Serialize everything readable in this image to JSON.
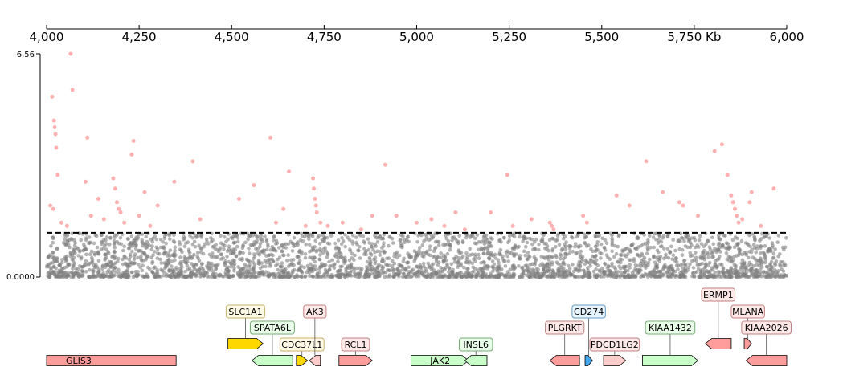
{
  "chart_data": {
    "type": "scatter",
    "title": "",
    "xlabel": "",
    "ylabel": "",
    "x_unit_label": "Kb",
    "xlim": [
      4000,
      6000
    ],
    "x_ticks": [
      4000,
      4250,
      4500,
      4750,
      5000,
      5250,
      5500,
      5750,
      6000
    ],
    "x_tick_labels": [
      "4,000",
      "4,250",
      "4,500",
      "4,750",
      "5,000",
      "5,250",
      "5,500",
      "5,750 Kb",
      "6,000"
    ],
    "ylim": [
      0,
      6.56
    ],
    "y_tick_labels": [
      "0.0000",
      "6.56"
    ],
    "threshold": 1.3,
    "colors": {
      "below_threshold": "#808080",
      "above_threshold": "#ff9d9d",
      "threshold_line": "#000000"
    },
    "series": [
      {
        "name": "",
        "description_hidden": false,
        "points_above": [
          [
            4015,
            5.3
          ],
          [
            4020,
            4.6
          ],
          [
            4022,
            4.4
          ],
          [
            4024,
            4.2
          ],
          [
            4026,
            3.8
          ],
          [
            4030,
            3.0
          ],
          [
            4010,
            2.1
          ],
          [
            4018,
            2.0
          ],
          [
            4040,
            1.6
          ],
          [
            4055,
            1.5
          ],
          [
            4065,
            6.56
          ],
          [
            4070,
            5.5
          ],
          [
            4110,
            4.1
          ],
          [
            4105,
            2.8
          ],
          [
            4120,
            1.8
          ],
          [
            4140,
            2.3
          ],
          [
            4155,
            1.7
          ],
          [
            4180,
            2.9
          ],
          [
            4185,
            2.6
          ],
          [
            4190,
            2.2
          ],
          [
            4195,
            2.0
          ],
          [
            4200,
            1.9
          ],
          [
            4210,
            1.6
          ],
          [
            4230,
            3.6
          ],
          [
            4235,
            4.0
          ],
          [
            4250,
            1.8
          ],
          [
            4265,
            2.5
          ],
          [
            4280,
            1.5
          ],
          [
            4300,
            2.1
          ],
          [
            4345,
            2.8
          ],
          [
            4395,
            3.4
          ],
          [
            4415,
            1.7
          ],
          [
            4520,
            2.3
          ],
          [
            4560,
            2.7
          ],
          [
            4605,
            4.1
          ],
          [
            4620,
            1.6
          ],
          [
            4640,
            2.0
          ],
          [
            4655,
            3.1
          ],
          [
            4700,
            1.5
          ],
          [
            4720,
            2.9
          ],
          [
            4722,
            2.6
          ],
          [
            4725,
            2.3
          ],
          [
            4728,
            2.1
          ],
          [
            4730,
            1.9
          ],
          [
            4740,
            1.6
          ],
          [
            4760,
            1.5
          ],
          [
            4800,
            1.6
          ],
          [
            4850,
            1.4
          ],
          [
            4880,
            1.8
          ],
          [
            4915,
            3.3
          ],
          [
            4945,
            1.8
          ],
          [
            5000,
            1.6
          ],
          [
            5040,
            1.7
          ],
          [
            5075,
            1.5
          ],
          [
            5105,
            1.9
          ],
          [
            5130,
            1.4
          ],
          [
            5200,
            1.9
          ],
          [
            5245,
            3.0
          ],
          [
            5260,
            1.5
          ],
          [
            5310,
            1.7
          ],
          [
            5360,
            1.6
          ],
          [
            5365,
            1.5
          ],
          [
            5370,
            1.4
          ],
          [
            5450,
            1.8
          ],
          [
            5460,
            1.6
          ],
          [
            5540,
            2.4
          ],
          [
            5575,
            2.1
          ],
          [
            5620,
            3.4
          ],
          [
            5665,
            2.5
          ],
          [
            5710,
            2.2
          ],
          [
            5720,
            2.1
          ],
          [
            5760,
            1.8
          ],
          [
            5805,
            3.7
          ],
          [
            5825,
            3.9
          ],
          [
            5840,
            3.0
          ],
          [
            5850,
            2.4
          ],
          [
            5855,
            2.2
          ],
          [
            5860,
            2.0
          ],
          [
            5865,
            1.8
          ],
          [
            5870,
            1.6
          ],
          [
            5880,
            1.7
          ],
          [
            5900,
            2.2
          ],
          [
            5905,
            2.5
          ],
          [
            5930,
            1.5
          ],
          [
            5965,
            2.6
          ]
        ]
      }
    ],
    "genes": [
      {
        "label": "GLIS3",
        "start": 4000,
        "end": 4350,
        "row": 0,
        "strand": "none",
        "fill": "#ff9d9d",
        "label_inside": true
      },
      {
        "label": "SLC1A1",
        "start": 4490,
        "end": 4585,
        "row": 1,
        "strand": "+",
        "fill": "#ffd700",
        "label_row": 3,
        "label_bg": "#fffbe6",
        "label_border": "#c9b26a"
      },
      {
        "label": "SPATA6L",
        "start": 4555,
        "end": 4665,
        "row": 0,
        "strand": "-",
        "fill": "#c9ffc9",
        "label_row": 2,
        "label_bg": "#eaffea",
        "label_border": "#74a874"
      },
      {
        "label": "CDC37L1",
        "start": 4675,
        "end": 4705,
        "row": 0,
        "strand": "+",
        "fill": "#ffd700",
        "label_row": 1,
        "label_bg": "#fffbe6",
        "label_border": "#c9b26a"
      },
      {
        "label": "AK3",
        "start": 4710,
        "end": 4740,
        "row": 0,
        "strand": "-",
        "fill": "#ffcccc",
        "label_row": 3,
        "label_bg": "#ffe8e8",
        "label_border": "#c08080"
      },
      {
        "label": "RCL1",
        "start": 4790,
        "end": 4880,
        "row": 0,
        "strand": "+",
        "fill": "#ff9d9d",
        "label_row": 1,
        "label_bg": "#ffe8e8",
        "label_border": "#c08080"
      },
      {
        "label": "JAK2",
        "start": 4985,
        "end": 5140,
        "row": 0,
        "strand": "+",
        "fill": "#c9ffc9",
        "label_inside": true
      },
      {
        "label": "INSL6",
        "start": 5130,
        "end": 5190,
        "row": 0,
        "strand": "-",
        "fill": "#c9ffc9",
        "label_row": 1,
        "label_bg": "#eaffea",
        "label_border": "#74a874"
      },
      {
        "label": "PLGRKT",
        "start": 5360,
        "end": 5440,
        "row": 0,
        "strand": "-",
        "fill": "#ff9d9d",
        "label_row": 2,
        "label_bg": "#ffe8e8",
        "label_border": "#c08080"
      },
      {
        "label": "CD274",
        "start": 5455,
        "end": 5475,
        "row": 0,
        "strand": "+",
        "fill": "#3fa9f5",
        "label_row": 3,
        "label_bg": "#e6f4ff",
        "label_border": "#6a9cc0"
      },
      {
        "label": "PDCD1LG2",
        "start": 5505,
        "end": 5565,
        "row": 0,
        "strand": "+",
        "fill": "#ffcccc",
        "label_row": 1,
        "label_bg": "#ffe8e8",
        "label_border": "#c08080"
      },
      {
        "label": "KIAA1432",
        "start": 5610,
        "end": 5760,
        "row": 0,
        "strand": "+",
        "fill": "#c9ffc9",
        "label_row": 2,
        "label_bg": "#eaffea",
        "label_border": "#74a874"
      },
      {
        "label": "ERMP1",
        "start": 5780,
        "end": 5850,
        "row": 1,
        "strand": "-",
        "fill": "#ff9d9d",
        "label_row": 4,
        "label_bg": "#ffe8e8",
        "label_border": "#c08080"
      },
      {
        "label": "MLANA",
        "start": 5885,
        "end": 5905,
        "row": 1,
        "strand": "+",
        "fill": "#ff9d9d",
        "label_row": 3,
        "label_bg": "#ffe8e8",
        "label_border": "#c08080"
      },
      {
        "label": "KIAA2026",
        "start": 5890,
        "end": 6000,
        "row": 0,
        "strand": "-",
        "fill": "#ff9d9d",
        "label_row": 2,
        "label_bg": "#ffe8e8",
        "label_border": "#c08080"
      }
    ]
  }
}
